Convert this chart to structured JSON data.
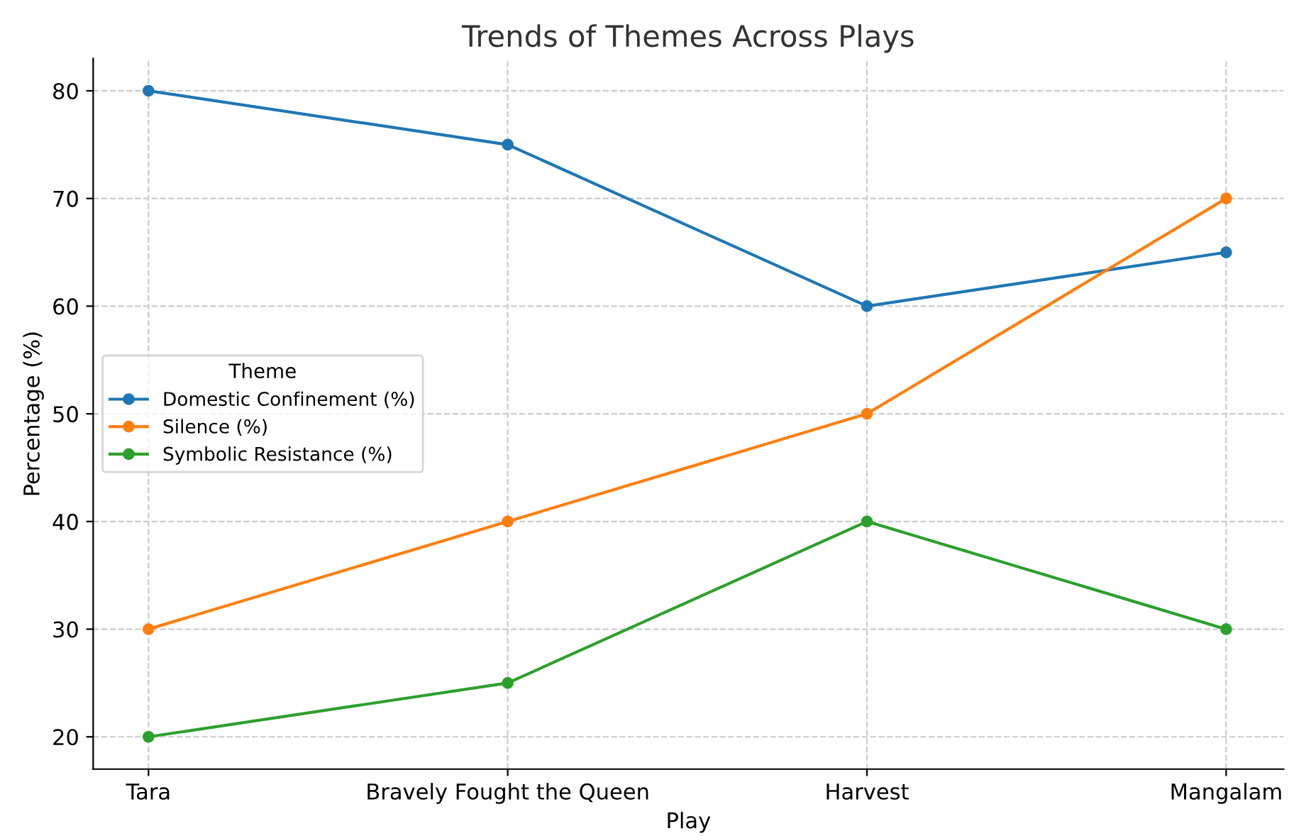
{
  "chart_data": {
    "type": "line",
    "title": "Trends of Themes Across Plays",
    "xlabel": "Play",
    "ylabel": "Percentage (%)",
    "legend_title": "Theme",
    "categories": [
      "Tara",
      "Bravely Fought the Queen",
      "Harvest",
      "Mangalam"
    ],
    "series": [
      {
        "name": "Domestic Confinement (%)",
        "color": "#1f77b4",
        "values": [
          80,
          75,
          60,
          65
        ]
      },
      {
        "name": "Silence (%)",
        "color": "#ff7f0e",
        "values": [
          30,
          40,
          50,
          70
        ]
      },
      {
        "name": "Symbolic Resistance (%)",
        "color": "#2ca02c",
        "values": [
          20,
          25,
          40,
          30
        ]
      }
    ],
    "ylim": [
      17,
      83
    ],
    "yticks": [
      20,
      30,
      40,
      50,
      60,
      70,
      80
    ],
    "grid": true,
    "legend": "center left",
    "marker": "circle",
    "line_style": "solid"
  }
}
